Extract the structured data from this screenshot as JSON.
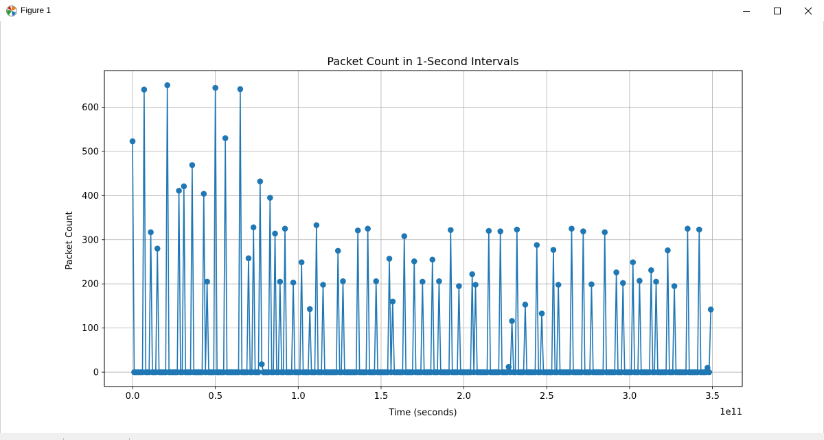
{
  "window": {
    "title": "Figure 1",
    "icons": {
      "app": "matplotlib-icon",
      "minimize": "minimize-icon",
      "maximize": "maximize-icon",
      "close": "close-icon"
    }
  },
  "chart_data": {
    "type": "line",
    "title": "Packet Count in 1-Second Intervals",
    "xlabel": "Time (seconds)",
    "ylabel": "Packet Count",
    "x_offset_text": "1e11",
    "xlim": [
      -0.17,
      3.68
    ],
    "ylim": [
      -32.5,
      683
    ],
    "xticks": [
      0.0,
      0.5,
      1.0,
      1.5,
      2.0,
      2.5,
      3.0,
      3.5
    ],
    "xtick_labels": [
      "0.0",
      "0.5",
      "1.0",
      "1.5",
      "2.0",
      "2.5",
      "3.0",
      "3.5"
    ],
    "yticks": [
      0,
      100,
      200,
      300,
      400,
      500,
      600
    ],
    "ytick_labels": [
      "0",
      "100",
      "200",
      "300",
      "400",
      "500",
      "600"
    ],
    "grid": true,
    "marker": "circle",
    "line_color": "#1f77b4",
    "spikes": [
      [
        0.0,
        523
      ],
      [
        0.07,
        640
      ],
      [
        0.11,
        317
      ],
      [
        0.15,
        280
      ],
      [
        0.21,
        650
      ],
      [
        0.28,
        411
      ],
      [
        0.31,
        421
      ],
      [
        0.36,
        469
      ],
      [
        0.43,
        404
      ],
      [
        0.45,
        205
      ],
      [
        0.5,
        644
      ],
      [
        0.56,
        530
      ],
      [
        0.65,
        641
      ],
      [
        0.7,
        258
      ],
      [
        0.73,
        328
      ],
      [
        0.77,
        432
      ],
      [
        0.78,
        18
      ],
      [
        0.83,
        395
      ],
      [
        0.86,
        314
      ],
      [
        0.89,
        205
      ],
      [
        0.92,
        325
      ],
      [
        0.97,
        203
      ],
      [
        1.02,
        249
      ],
      [
        1.07,
        143
      ],
      [
        1.11,
        333
      ],
      [
        1.15,
        198
      ],
      [
        1.24,
        275
      ],
      [
        1.27,
        206
      ],
      [
        1.36,
        321
      ],
      [
        1.42,
        325
      ],
      [
        1.47,
        206
      ],
      [
        1.55,
        257
      ],
      [
        1.57,
        160
      ],
      [
        1.64,
        308
      ],
      [
        1.7,
        251
      ],
      [
        1.75,
        205
      ],
      [
        1.81,
        255
      ],
      [
        1.85,
        206
      ],
      [
        1.92,
        322
      ],
      [
        1.97,
        195
      ],
      [
        2.05,
        222
      ],
      [
        2.07,
        198
      ],
      [
        2.15,
        320
      ],
      [
        2.22,
        319
      ],
      [
        2.27,
        12
      ],
      [
        2.29,
        116
      ],
      [
        2.32,
        323
      ],
      [
        2.37,
        153
      ],
      [
        2.44,
        288
      ],
      [
        2.47,
        133
      ],
      [
        2.54,
        277
      ],
      [
        2.57,
        198
      ],
      [
        2.65,
        325
      ],
      [
        2.72,
        319
      ],
      [
        2.77,
        199
      ],
      [
        2.85,
        317
      ],
      [
        2.92,
        226
      ],
      [
        2.96,
        202
      ],
      [
        3.02,
        249
      ],
      [
        3.06,
        207
      ],
      [
        3.13,
        231
      ],
      [
        3.16,
        205
      ],
      [
        3.23,
        276
      ],
      [
        3.27,
        195
      ],
      [
        3.35,
        325
      ],
      [
        3.42,
        323
      ],
      [
        3.47,
        10
      ],
      [
        3.49,
        142
      ]
    ],
    "baseline_value": 0,
    "x_start": 0.0,
    "x_end": 3.49,
    "baseline_spacing": 0.01
  }
}
